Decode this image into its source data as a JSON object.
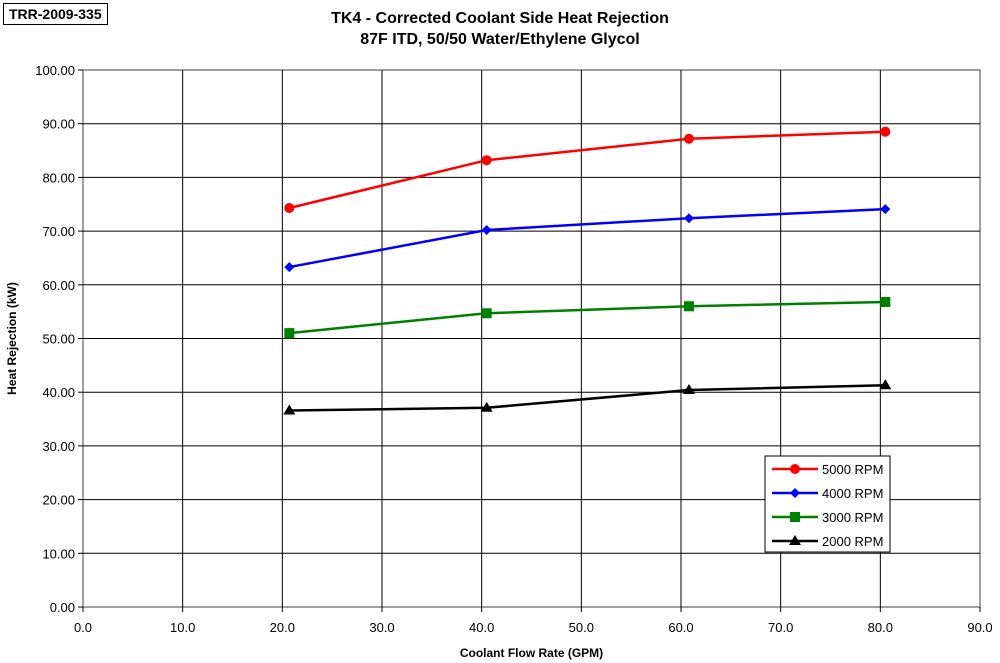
{
  "chart_data": {
    "type": "line",
    "tag": "TRR-2009-335",
    "title": "TK4 - Corrected Coolant Side Heat Rejection",
    "subtitle": "87F ITD, 50/50 Water/Ethylene Glycol",
    "xlabel": "Coolant Flow Rate (GPM)",
    "ylabel": "Heat Rejection (kW)",
    "xlim": [
      0,
      90
    ],
    "ylim": [
      0,
      100
    ],
    "xticks": [
      "0.0",
      "10.0",
      "20.0",
      "30.0",
      "40.0",
      "50.0",
      "60.0",
      "70.0",
      "80.0",
      "90.0"
    ],
    "yticks": [
      "0.00",
      "10.00",
      "20.00",
      "30.00",
      "40.00",
      "50.00",
      "60.00",
      "70.00",
      "80.00",
      "90.00",
      "100.00"
    ],
    "grid": true,
    "legend_position": "bottom-right",
    "x": [
      20.7,
      40.5,
      60.8,
      80.5
    ],
    "series": [
      {
        "name": "5000 RPM",
        "color": "#ff0000",
        "marker": "circle",
        "values": [
          74.3,
          83.2,
          87.2,
          88.5
        ]
      },
      {
        "name": "4000 RPM",
        "color": "#0000ff",
        "marker": "diamond",
        "values": [
          63.3,
          70.2,
          72.4,
          74.1
        ]
      },
      {
        "name": "3000 RPM",
        "color": "#008000",
        "marker": "square",
        "values": [
          51.0,
          54.7,
          56.0,
          56.8
        ]
      },
      {
        "name": "2000 RPM",
        "color": "#000000",
        "marker": "triangle",
        "values": [
          36.6,
          37.1,
          40.4,
          41.3
        ]
      }
    ]
  }
}
